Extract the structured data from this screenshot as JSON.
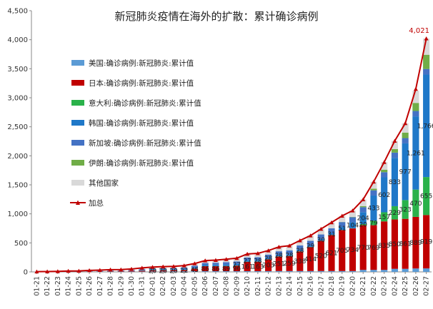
{
  "chart_data": {
    "type": "bar",
    "stacked": true,
    "title": "新冠肺炎疫情在海外的扩散：累计确诊病例",
    "xlabel": "",
    "ylabel": "",
    "ylim": [
      0,
      4500
    ],
    "yticks": [
      "0",
      "500",
      "1,000",
      "1,500",
      "2,000",
      "2,500",
      "3,000",
      "3,500",
      "4,000",
      "4,500"
    ],
    "grid": false,
    "legend_position": "left",
    "categories": [
      "01-21",
      "01-22",
      "01-23",
      "01-24",
      "01-25",
      "01-26",
      "01-27",
      "01-28",
      "01-29",
      "01-30",
      "01-31",
      "02-01",
      "02-02",
      "02-03",
      "02-04",
      "02-05",
      "02-06",
      "02-07",
      "02-08",
      "02-09",
      "02-10",
      "02-11",
      "02-12",
      "02-13",
      "02-14",
      "02-15",
      "02-16",
      "02-17",
      "02-18",
      "02-19",
      "02-20",
      "02-21",
      "02-22",
      "02-23",
      "02-24",
      "02-25",
      "02-26",
      "02-27"
    ],
    "series": [
      {
        "name": "美国:确诊病例:新冠肺炎:累计值",
        "color": "#5b9bd5",
        "values": [
          1,
          1,
          1,
          2,
          2,
          5,
          5,
          5,
          5,
          6,
          6,
          8,
          8,
          11,
          11,
          12,
          12,
          12,
          12,
          12,
          13,
          13,
          14,
          15,
          15,
          15,
          15,
          15,
          15,
          15,
          15,
          35,
          35,
          35,
          53,
          53,
          59,
          60
        ]
      },
      {
        "name": "日本:确诊病例:新冠肺炎:累计值",
        "color": "#c00000",
        "values": [
          1,
          1,
          1,
          2,
          2,
          4,
          4,
          7,
          7,
          11,
          15,
          20,
          20,
          20,
          22,
          45,
          86,
          86,
          89,
          96,
          161,
          163,
          203,
          251,
          259,
          338,
          414,
          520,
          621,
          705,
          734,
          770,
          769,
          835,
          850,
          861,
          889,
          919
        ]
      },
      {
        "name": "意大利:确诊病例:新冠肺炎:累计值",
        "color": "#2ab24a",
        "values": [
          0,
          0,
          0,
          0,
          0,
          0,
          0,
          0,
          0,
          0,
          2,
          2,
          2,
          2,
          2,
          2,
          2,
          3,
          3,
          3,
          3,
          3,
          3,
          3,
          3,
          3,
          3,
          3,
          3,
          3,
          3,
          20,
          79,
          157,
          229,
          323,
          470,
          655
        ]
      },
      {
        "name": "韩国:确诊病例:新冠肺炎:累计值",
        "color": "#1f78c8",
        "values": [
          1,
          1,
          1,
          2,
          2,
          3,
          4,
          4,
          4,
          4,
          11,
          12,
          15,
          15,
          16,
          19,
          23,
          24,
          24,
          27,
          27,
          28,
          28,
          28,
          28,
          28,
          29,
          30,
          31,
          51,
          104,
          204,
          433,
          602,
          833,
          977,
          1261,
          1766
        ]
      },
      {
        "name": "新加坡:确诊病例:新冠肺炎:累计值",
        "color": "#4472c4",
        "values": [
          0,
          0,
          1,
          3,
          3,
          4,
          5,
          7,
          7,
          10,
          13,
          16,
          18,
          18,
          24,
          28,
          30,
          33,
          40,
          43,
          45,
          47,
          50,
          58,
          67,
          72,
          75,
          77,
          81,
          84,
          85,
          86,
          89,
          89,
          90,
          91,
          93,
          96
        ]
      },
      {
        "name": "伊朗:确诊病例:新冠肺炎:累计值",
        "color": "#70ad47",
        "values": [
          0,
          0,
          0,
          0,
          0,
          0,
          0,
          0,
          0,
          0,
          0,
          0,
          0,
          0,
          0,
          0,
          0,
          0,
          0,
          0,
          0,
          0,
          0,
          0,
          0,
          0,
          0,
          0,
          0,
          2,
          5,
          18,
          28,
          43,
          61,
          95,
          139,
          245
        ]
      },
      {
        "name": "其他国家",
        "color": "#d9d9d9",
        "values": [
          1,
          3,
          5,
          7,
          8,
          10,
          13,
          15,
          17,
          19,
          22,
          25,
          27,
          30,
          34,
          38,
          42,
          45,
          50,
          55,
          60,
          65,
          70,
          75,
          80,
          85,
          90,
          95,
          100,
          105,
          110,
          115,
          120,
          130,
          140,
          160,
          210,
          280
        ]
      },
      {
        "name": "加总",
        "color": "#c00000",
        "kind": "line",
        "values": [
          4,
          6,
          9,
          16,
          17,
          26,
          31,
          38,
          40,
          50,
          69,
          83,
          90,
          96,
          109,
          144,
          195,
          203,
          218,
          236,
          309,
          319,
          368,
          430,
          452,
          541,
          626,
          740,
          851,
          965,
          1056,
          1248,
          1553,
          1891,
          2256,
          2560,
          3150,
          4021
        ]
      }
    ],
    "data_labels": {
      "日本:确诊病例:新冠肺炎:累计值": [
        "",
        "",
        "",
        "",
        "",
        "",
        "",
        "",
        "",
        "",
        "",
        "20",
        "20",
        "20",
        "22",
        "45",
        "86",
        "86",
        "89",
        "96",
        "161",
        "163",
        "203",
        "251",
        "259",
        "338",
        "414",
        "520",
        "621",
        "705",
        "734",
        "770",
        "769",
        "835",
        "850",
        "861",
        "889",
        "919"
      ],
      "意大利:确诊病例:新冠肺炎:累计值": [
        "",
        "",
        "",
        "",
        "",
        "",
        "",
        "",
        "",
        "",
        "",
        "",
        "",
        "",
        "",
        "",
        "",
        "",
        "",
        "",
        "",
        "",
        "",
        "",
        "",
        "",
        "",
        "",
        "",
        "",
        "",
        "20",
        "79",
        "157",
        "229",
        "323",
        "470",
        "655"
      ],
      "韩国:确诊病例:新冠肺炎:累计值": [
        "",
        "",
        "",
        "",
        "",
        "",
        "",
        "",
        "",
        "",
        "",
        "",
        "",
        "",
        "",
        "",
        "",
        "",
        "",
        "27",
        "27",
        "28",
        "28",
        "28",
        "28",
        "28",
        "29",
        "30",
        "31",
        "51",
        "104",
        "204",
        "433",
        "602",
        "833",
        "977",
        "1,261",
        "1,766"
      ],
      "加总": [
        "",
        "",
        "",
        "",
        "",
        "",
        "",
        "",
        "",
        "",
        "",
        "",
        "",
        "",
        "",
        "",
        "",
        "",
        "",
        "",
        "",
        "",
        "",
        "",
        "",
        "",
        "",
        "",
        "",
        "",
        "",
        "",
        "",
        "",
        "",
        "",
        "",
        "4,021"
      ]
    }
  }
}
